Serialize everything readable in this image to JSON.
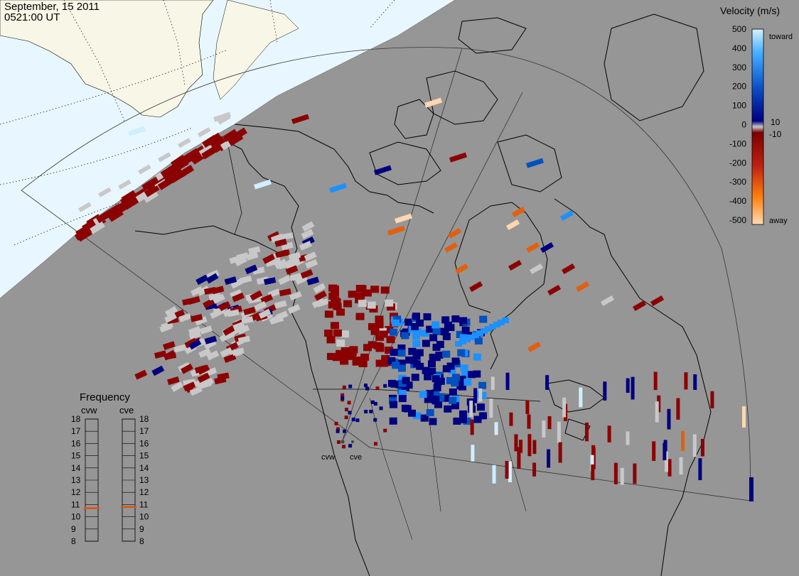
{
  "header": {
    "date": "September, 15 2011",
    "time": "0521:00 UT"
  },
  "radars": [
    {
      "id": "cvw",
      "label": "cvw"
    },
    {
      "id": "cve",
      "label": "cve"
    }
  ],
  "velocity_scale": {
    "title": "Velocity (m/s)",
    "ticks": [
      "500",
      "400",
      "300",
      "200",
      "100",
      "0",
      "-100",
      "-200",
      "-300",
      "-400",
      "-500"
    ],
    "near_zero_labels": [
      "10",
      "-10"
    ],
    "toward_label": "toward",
    "away_label": "away",
    "colors": {
      "toward_light": "#cfeeff",
      "toward_mid": "#1e90ff",
      "toward_dark": "#00007f",
      "zero": "#c8c8c8",
      "away_dark": "#8b0000",
      "away_mid": "#e06010",
      "away_light": "#ffd8b0"
    }
  },
  "frequency_panel": {
    "title": "Frequency",
    "columns": [
      {
        "label": "cvw",
        "value": 10.7
      },
      {
        "label": "cve",
        "value": 10.8
      }
    ],
    "ticks": [
      "18",
      "17",
      "16",
      "15",
      "14",
      "13",
      "12",
      "11",
      "10",
      "9",
      "8"
    ]
  },
  "colors": {
    "ocean_grey": "#969696",
    "daylight_sea": "#e8f7ff",
    "daylight_land": "#f8f6e6",
    "coast": "#000000",
    "indicator": "#e05010"
  }
}
